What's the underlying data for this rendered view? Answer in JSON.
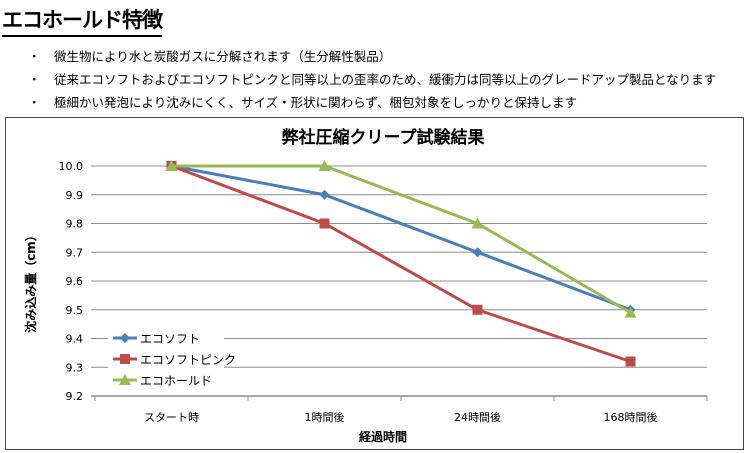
{
  "heading": "エコホールド特徴",
  "bullets": [
    "微生物により水と炭酸ガスに分解されます（生分解性製品）",
    "従来エコソフトおよびエコソフトピンクと同等以上の歪率のため、緩衝力は同等以上のグレードアップ製品となります",
    "極細かい発泡により沈みにくく、サイズ・形状に関わらず、梱包対象をしっかりと保持します"
  ],
  "bullet_marker": "・",
  "chart_data": {
    "type": "line",
    "title": "弊社圧縮クリープ試験結果",
    "xlabel": "経過時間",
    "ylabel": "沈み込み量（cm）",
    "categories": [
      "スタート時",
      "1時間後",
      "24時間後",
      "168時間後"
    ],
    "ylim": [
      9.2,
      10.0
    ],
    "yticks": [
      "10.0",
      "9.9",
      "9.8",
      "9.7",
      "9.6",
      "9.5",
      "9.4",
      "9.3",
      "9.2"
    ],
    "grid": true,
    "legend": "bottom-left",
    "series": [
      {
        "name": "エコソフト",
        "values": [
          10.0,
          9.9,
          9.7,
          9.5
        ],
        "color": "#4a7ebb",
        "marker": "diamond"
      },
      {
        "name": "エコソフトピンク",
        "values": [
          10.0,
          9.8,
          9.5,
          9.32
        ],
        "color": "#be4b48",
        "marker": "square"
      },
      {
        "name": "エコホールド",
        "values": [
          10.0,
          10.0,
          9.8,
          9.49
        ],
        "color": "#98b954",
        "marker": "triangle"
      }
    ]
  }
}
